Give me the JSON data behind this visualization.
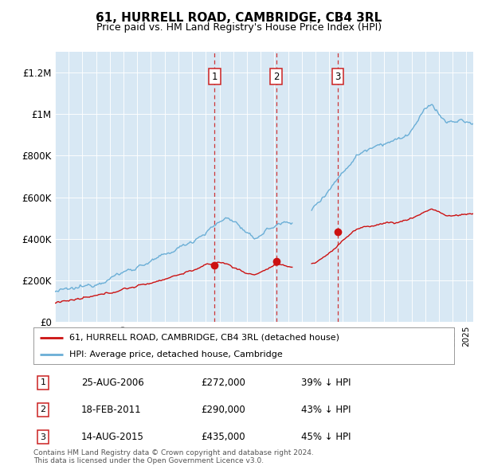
{
  "title": "61, HURRELL ROAD, CAMBRIDGE, CB4 3RL",
  "subtitle": "Price paid vs. HM Land Registry's House Price Index (HPI)",
  "plot_bg_color": "#d8e8f4",
  "hpi_color": "#6aaed6",
  "price_color": "#cc1111",
  "vline_color": "#cc2222",
  "ylim": [
    0,
    1300000
  ],
  "yticks": [
    0,
    200000,
    400000,
    600000,
    800000,
    1000000,
    1200000
  ],
  "ytick_labels": [
    "£0",
    "£200K",
    "£400K",
    "£600K",
    "£800K",
    "£1M",
    "£1.2M"
  ],
  "transaction_dates": [
    2006.648,
    2011.13,
    2015.622
  ],
  "transaction_prices": [
    272000,
    290000,
    435000
  ],
  "transaction_labels": [
    "1",
    "2",
    "3"
  ],
  "transaction_info": [
    [
      "1",
      "25-AUG-2006",
      "£272,000",
      "39% ↓ HPI"
    ],
    [
      "2",
      "18-FEB-2011",
      "£290,000",
      "43% ↓ HPI"
    ],
    [
      "3",
      "14-AUG-2015",
      "£435,000",
      "45% ↓ HPI"
    ]
  ],
  "legend_line1": "61, HURRELL ROAD, CAMBRIDGE, CB4 3RL (detached house)",
  "legend_line2": "HPI: Average price, detached house, Cambridge",
  "footer": "Contains HM Land Registry data © Crown copyright and database right 2024.\nThis data is licensed under the Open Government Licence v3.0.",
  "xmin": 1995.0,
  "xmax": 2025.5
}
